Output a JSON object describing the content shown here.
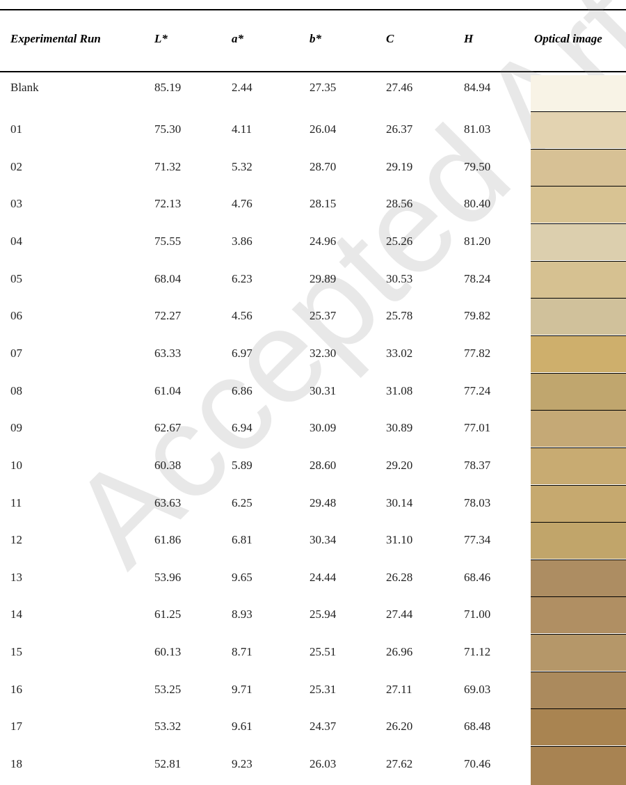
{
  "watermark": "Accepted Article",
  "table": {
    "headers": [
      "Experimental Run",
      "L*",
      "a*",
      "b*",
      "C",
      "H",
      "Optical image"
    ],
    "rows": [
      {
        "run": "Blank",
        "values": [
          "85.19",
          "2.44",
          "27.35",
          "27.46",
          "84.94"
        ],
        "color": "#f8f3e6"
      },
      {
        "run": "01",
        "values": [
          "75.30",
          "4.11",
          "26.04",
          "26.37",
          "81.03"
        ],
        "color": "#e3d3b1"
      },
      {
        "run": "02",
        "values": [
          "71.32",
          "5.32",
          "28.70",
          "29.19",
          "79.50"
        ],
        "color": "#d7c195"
      },
      {
        "run": "03",
        "values": [
          "72.13",
          "4.76",
          "28.15",
          "28.56",
          "80.40"
        ],
        "color": "#d8c393"
      },
      {
        "run": "04",
        "values": [
          "75.55",
          "3.86",
          "24.96",
          "25.26",
          "81.20"
        ],
        "color": "#dccfae"
      },
      {
        "run": "05",
        "values": [
          "68.04",
          "6.23",
          "29.89",
          "30.53",
          "78.24"
        ],
        "color": "#d6c191"
      },
      {
        "run": "06",
        "values": [
          "72.27",
          "4.56",
          "25.37",
          "25.78",
          "79.82"
        ],
        "color": "#d0c19b"
      },
      {
        "run": "07",
        "values": [
          "63.33",
          "6.97",
          "32.30",
          "33.02",
          "77.82"
        ],
        "color": "#ceaf6c"
      },
      {
        "run": "08",
        "values": [
          "61.04",
          "6.86",
          "30.31",
          "31.08",
          "77.24"
        ],
        "color": "#c0a66e"
      },
      {
        "run": "09",
        "values": [
          "62.67",
          "6.94",
          "30.09",
          "30.89",
          "77.01"
        ],
        "color": "#c5a976"
      },
      {
        "run": "10",
        "values": [
          "60.38",
          "5.89",
          "28.60",
          "29.20",
          "78.37"
        ],
        "color": "#c8ab72"
      },
      {
        "run": "11",
        "values": [
          "63.63",
          "6.25",
          "29.48",
          "30.14",
          "78.03"
        ],
        "color": "#c6a96f"
      },
      {
        "run": "12",
        "values": [
          "61.86",
          "6.81",
          "30.34",
          "31.10",
          "77.34"
        ],
        "color": "#c1a56a"
      },
      {
        "run": "13",
        "values": [
          "53.96",
          "9.65",
          "24.44",
          "26.28",
          "68.46"
        ],
        "color": "#ad8d62"
      },
      {
        "run": "14",
        "values": [
          "61.25",
          "8.93",
          "25.94",
          "27.44",
          "71.00"
        ],
        "color": "#b08f63"
      },
      {
        "run": "15",
        "values": [
          "60.13",
          "8.71",
          "25.51",
          "26.96",
          "71.12"
        ],
        "color": "#b59769"
      },
      {
        "run": "16",
        "values": [
          "53.25",
          "9.71",
          "25.31",
          "27.11",
          "69.03"
        ],
        "color": "#ab8a5d"
      },
      {
        "run": "17",
        "values": [
          "53.32",
          "9.61",
          "24.37",
          "26.20",
          "68.48"
        ],
        "color": "#a98451"
      },
      {
        "run": "18",
        "values": [
          "52.81",
          "9.23",
          "26.03",
          "27.62",
          "70.46"
        ],
        "color": "#a88352"
      }
    ]
  }
}
